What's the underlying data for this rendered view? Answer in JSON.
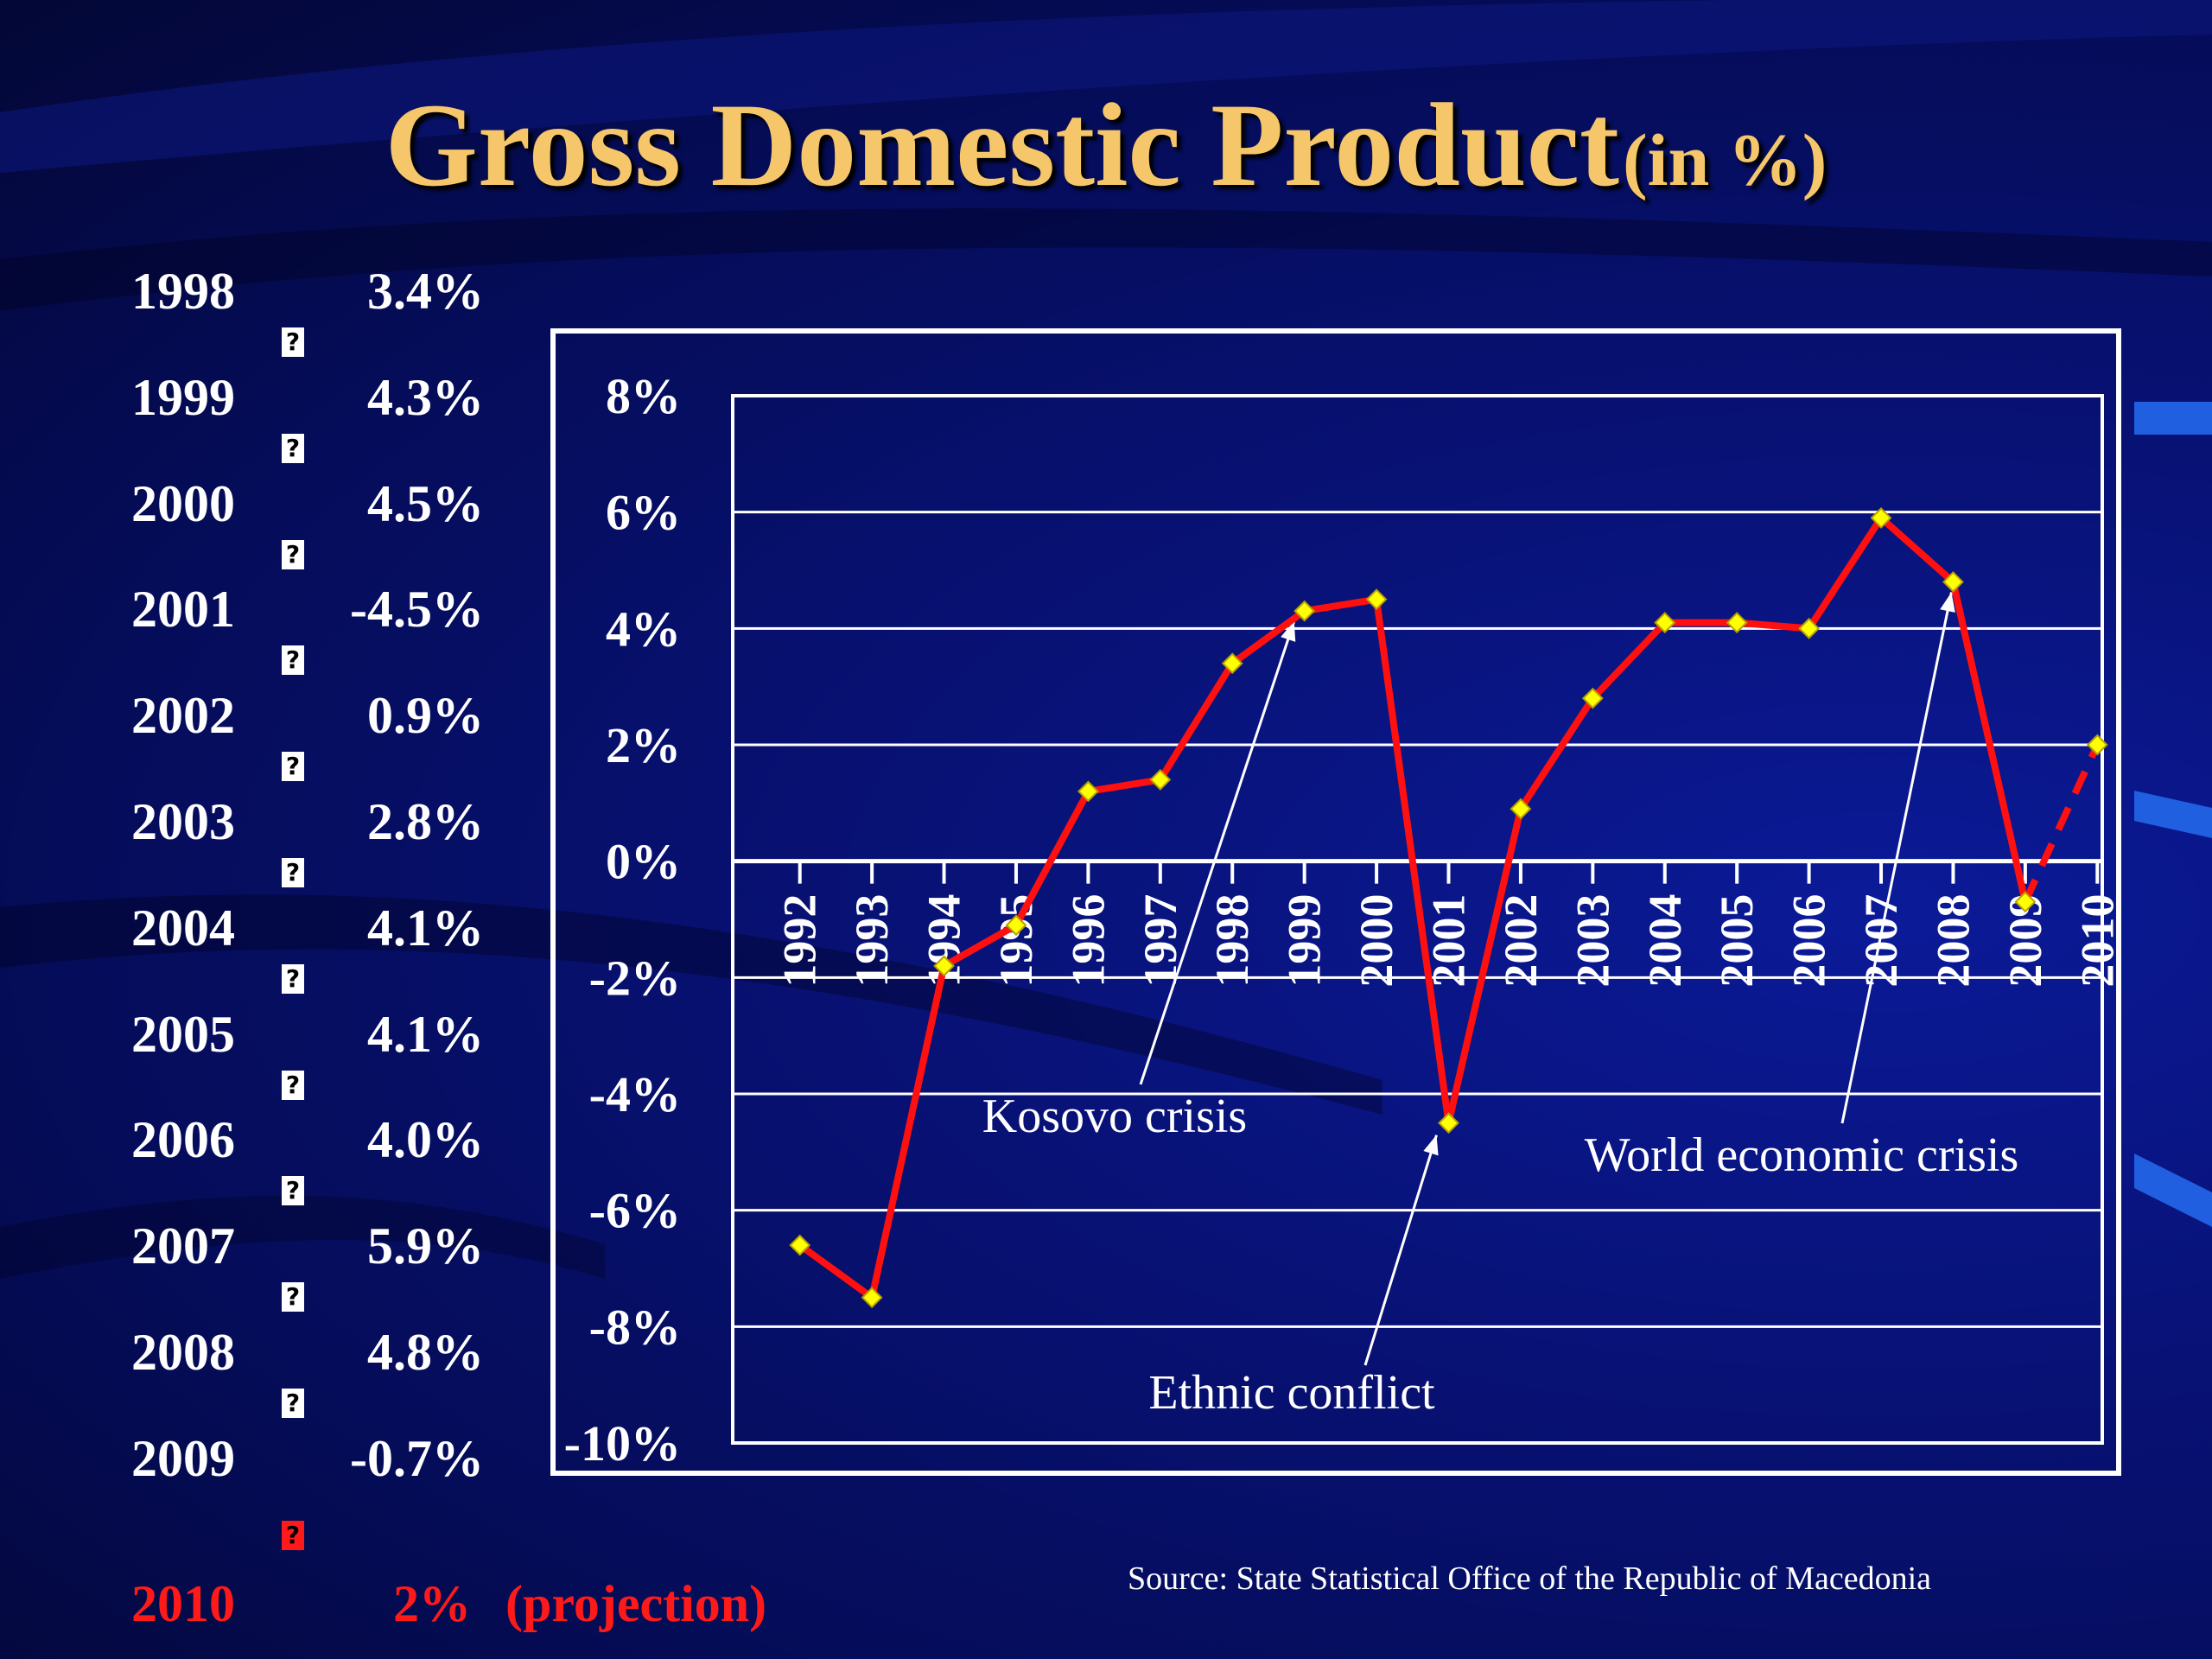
{
  "title": {
    "main": "Gross Domestic Product",
    "sub": "(in %)"
  },
  "table": {
    "rows": [
      {
        "year": "1998",
        "value": "3.4%"
      },
      {
        "year": "1999",
        "value": "4.3%"
      },
      {
        "year": "2000",
        "value": "4.5%"
      },
      {
        "year": "2001",
        "value": "-4.5%"
      },
      {
        "year": "2002",
        "value": "0.9%"
      },
      {
        "year": "2003",
        "value": "2.8%"
      },
      {
        "year": "2004",
        "value": "4.1%"
      },
      {
        "year": "2005",
        "value": "4.1%"
      },
      {
        "year": "2006",
        "value": "4.0%"
      },
      {
        "year": "2007",
        "value": "5.9%"
      },
      {
        "year": "2008",
        "value": "4.8%"
      },
      {
        "year": "2009",
        "value": "-0.7%"
      }
    ],
    "projection": {
      "year": "2010",
      "value": "2%",
      "note": "(projection)"
    },
    "separator_glyph": "?"
  },
  "source": "Source: State Statistical Office of the Republic of Macedonia",
  "colors": {
    "title": "#f5c66a",
    "line": "#ff1010",
    "marker": "#ffff00",
    "projection_text": "#ff1a1a",
    "grid": "#ffffff"
  },
  "chart_data": {
    "type": "line",
    "x": [
      "1992",
      "1993",
      "1994",
      "1995",
      "1996",
      "1997",
      "1998",
      "1999",
      "2000",
      "2001",
      "2002",
      "2003",
      "2004",
      "2005",
      "2006",
      "2007",
      "2008",
      "2009",
      "2010"
    ],
    "series": [
      {
        "values": [
          -6.6,
          -7.5,
          -1.8,
          -1.1,
          1.2,
          1.4,
          3.4,
          4.3,
          4.5,
          -4.5,
          0.9,
          2.8,
          4.1,
          4.1,
          4.0,
          5.9,
          4.8,
          -0.7,
          2.0
        ],
        "projected_from_index": 17
      }
    ],
    "ylim": [
      -10,
      8
    ],
    "yticks": [
      8,
      6,
      4,
      2,
      0,
      -2,
      -4,
      -6,
      -8,
      -10
    ],
    "ytick_labels": [
      "8%",
      "6%",
      "4%",
      "2%",
      "0%",
      "-2%",
      "-4%",
      "-6%",
      "-8%",
      "-10%"
    ],
    "grid": true,
    "annotations": [
      {
        "text": "Kosovo crisis",
        "target_x": "1999"
      },
      {
        "text": "Ethnic conflict",
        "target_x": "2001"
      },
      {
        "text": "World economic crisis",
        "target_x": "2008"
      }
    ]
  }
}
